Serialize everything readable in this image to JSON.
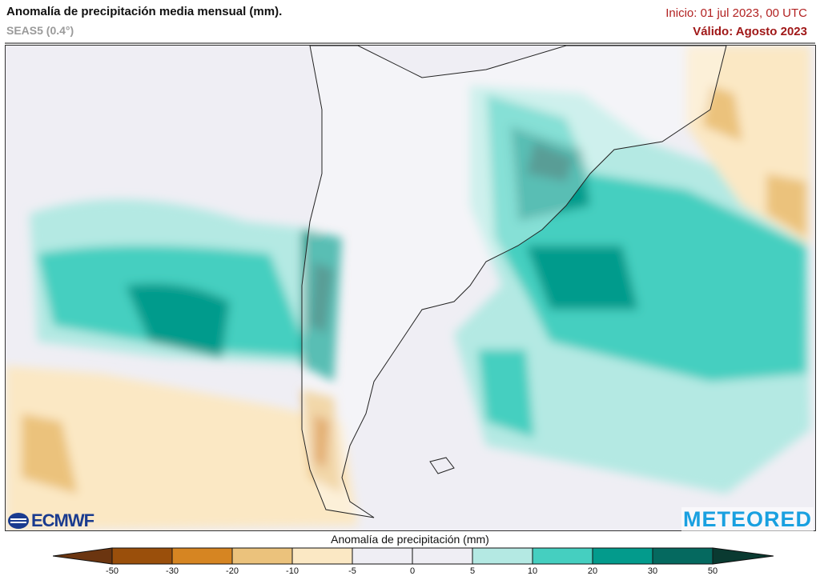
{
  "header": {
    "title": "Anomalía de precipitación media mensual (mm).",
    "model": "SEAS5 (0.4°)",
    "init": "Inicio: 01 jul 2023, 00 UTC",
    "valid": "Válido: Agosto 2023"
  },
  "logos": {
    "left": "ECMWF",
    "right": "METEORED"
  },
  "legend": {
    "title": "Anomalía de precipitación (mm)",
    "ticks": [
      "-50",
      "-30",
      "-20",
      "-10",
      "-5",
      "0",
      "5",
      "10",
      "20",
      "30",
      "50"
    ],
    "colors": {
      "below": "#6b3510",
      "seg": [
        "#9a4f0b",
        "#d68522",
        "#ebc27c",
        "#fbe8c4",
        "#efeef4",
        "#efeef4",
        "#b4e9e3",
        "#45cfc0",
        "#039b8c",
        "#05695f"
      ],
      "above": "#0a3a31"
    }
  }
}
